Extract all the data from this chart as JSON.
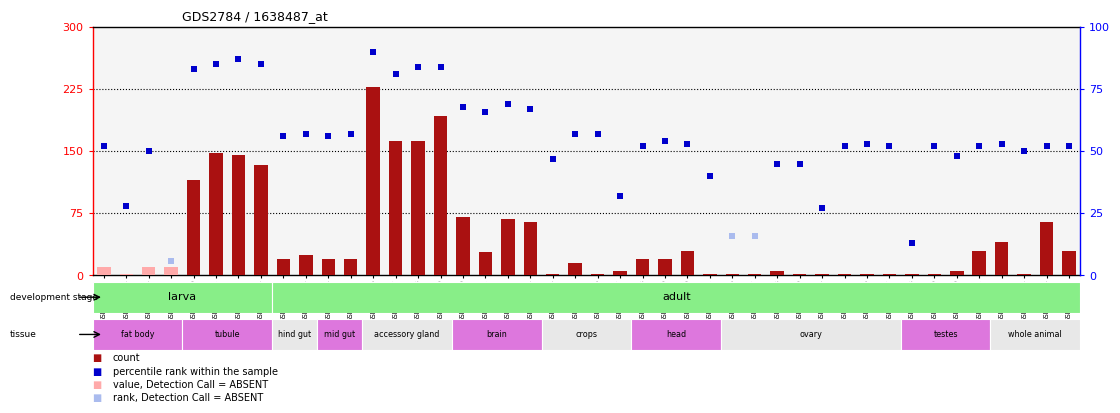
{
  "title": "GDS2784 / 1638487_at",
  "samples": [
    "GSM188092",
    "GSM188093",
    "GSM188094",
    "GSM188095",
    "GSM188100",
    "GSM188101",
    "GSM188102",
    "GSM188103",
    "GSM188072",
    "GSM188073",
    "GSM188074",
    "GSM188075",
    "GSM188076",
    "GSM188077",
    "GSM188078",
    "GSM188079",
    "GSM188080",
    "GSM188081",
    "GSM188082",
    "GSM188083",
    "GSM188084",
    "GSM188085",
    "GSM188086",
    "GSM188087",
    "GSM188088",
    "GSM188089",
    "GSM188090",
    "GSM188091",
    "GSM188096",
    "GSM188097",
    "GSM188098",
    "GSM188099",
    "GSM188104",
    "GSM188105",
    "GSM188106",
    "GSM188107",
    "GSM188108",
    "GSM188109",
    "GSM188110",
    "GSM188111",
    "GSM188112",
    "GSM188113",
    "GSM188114",
    "GSM188115"
  ],
  "count_values": [
    10,
    2,
    10,
    10,
    115,
    148,
    145,
    133,
    20,
    25,
    20,
    20,
    228,
    162,
    162,
    192,
    70,
    28,
    68,
    65,
    2,
    15,
    2,
    5,
    20,
    20,
    30,
    2,
    2,
    2,
    5,
    2,
    2,
    2,
    2,
    2,
    2,
    2,
    5,
    30,
    40,
    2,
    65,
    30
  ],
  "count_absent": [
    true,
    true,
    true,
    true,
    false,
    false,
    false,
    false,
    false,
    false,
    false,
    false,
    false,
    false,
    false,
    false,
    false,
    false,
    false,
    false,
    false,
    false,
    false,
    false,
    false,
    false,
    false,
    false,
    false,
    false,
    false,
    false,
    false,
    false,
    false,
    false,
    false,
    false,
    false,
    false,
    false,
    false,
    false,
    false
  ],
  "rank_values": [
    52,
    28,
    50,
    6,
    83,
    85,
    87,
    85,
    56,
    57,
    56,
    57,
    90,
    81,
    84,
    84,
    68,
    66,
    69,
    67,
    47,
    57,
    57,
    32,
    52,
    54,
    53,
    40,
    16,
    16,
    45,
    45,
    27,
    52,
    53,
    52,
    13,
    52,
    48,
    52,
    53,
    50,
    52,
    52
  ],
  "rank_absent": [
    false,
    false,
    false,
    true,
    false,
    false,
    false,
    false,
    false,
    false,
    false,
    false,
    false,
    false,
    false,
    false,
    false,
    false,
    false,
    false,
    false,
    false,
    false,
    false,
    false,
    false,
    false,
    false,
    true,
    true,
    false,
    false,
    false,
    false,
    false,
    false,
    false,
    false,
    false,
    false,
    false,
    false,
    false,
    false
  ],
  "dev_groups": [
    {
      "label": "larva",
      "start": 0,
      "end": 8
    },
    {
      "label": "adult",
      "start": 8,
      "end": 44
    }
  ],
  "tissue_groups": [
    {
      "label": "fat body",
      "start": 0,
      "end": 4,
      "color": "#DD77DD"
    },
    {
      "label": "tubule",
      "start": 4,
      "end": 8,
      "color": "#DD77DD"
    },
    {
      "label": "hind gut",
      "start": 8,
      "end": 10,
      "color": "#E8E8E8"
    },
    {
      "label": "mid gut",
      "start": 10,
      "end": 12,
      "color": "#DD77DD"
    },
    {
      "label": "accessory gland",
      "start": 12,
      "end": 16,
      "color": "#E8E8E8"
    },
    {
      "label": "brain",
      "start": 16,
      "end": 20,
      "color": "#DD77DD"
    },
    {
      "label": "crops",
      "start": 20,
      "end": 24,
      "color": "#E8E8E8"
    },
    {
      "label": "head",
      "start": 24,
      "end": 28,
      "color": "#DD77DD"
    },
    {
      "label": "ovary",
      "start": 28,
      "end": 36,
      "color": "#E8E8E8"
    },
    {
      "label": "testes",
      "start": 36,
      "end": 40,
      "color": "#DD77DD"
    },
    {
      "label": "whole animal",
      "start": 40,
      "end": 44,
      "color": "#E8E8E8"
    }
  ],
  "bar_color": "#AA1111",
  "bar_absent_color": "#FFAAAA",
  "rank_color": "#0000CC",
  "rank_absent_color": "#AABBEE",
  "bg_color": "#FFFFFF",
  "chart_bg": "#F5F5F5",
  "dev_color": "#88EE88",
  "yticks_left": [
    0,
    75,
    150,
    225,
    300
  ],
  "yticks_right": [
    0,
    25,
    50,
    75,
    100
  ]
}
